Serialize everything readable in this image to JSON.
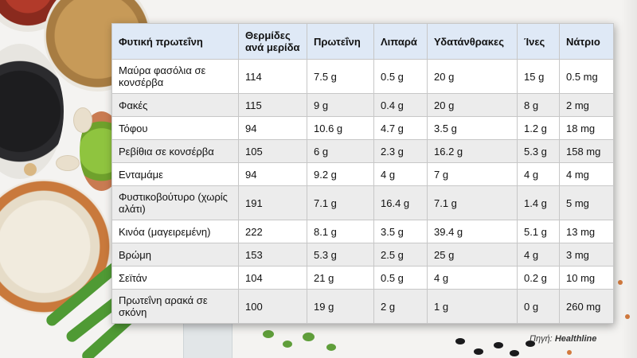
{
  "table": {
    "headers": [
      "Φυτική πρωτεΐνη",
      "Θερμίδες ανά μερίδα",
      "Πρωτεΐνη",
      "Λιπαρά",
      "Υδατάνθρακες",
      "Ίνες",
      "Νάτριο"
    ],
    "rows": [
      [
        "Μαύρα φασόλια σε κονσέρβα",
        "114",
        "7.5 g",
        "0.5 g",
        "20 g",
        "15 g",
        "0.5 mg"
      ],
      [
        "Φακές",
        "115",
        "9 g",
        "0.4 g",
        "20 g",
        "8 g",
        "2 mg"
      ],
      [
        "Τόφου",
        "94",
        "10.6 g",
        "4.7 g",
        "3.5 g",
        "1.2 g",
        "18 mg"
      ],
      [
        "Ρεβίθια σε κονσέρβα",
        "105",
        "6 g",
        "2.3 g",
        "16.2 g",
        "5.3 g",
        "158 mg"
      ],
      [
        "Ενταμάμε",
        "94",
        "9.2 g",
        "4 g",
        "7 g",
        "4 g",
        "4 mg"
      ],
      [
        "Φυστικοβούτυρο (χωρίς αλάτι)",
        "191",
        "7.1 g",
        "16.4 g",
        "7.1 g",
        "1.4 g",
        "5 mg"
      ],
      [
        "Κινόα (μαγειρεμένη)",
        "222",
        "8.1 g",
        "3.5 g",
        "39.4 g",
        "5.1 g",
        "13 mg"
      ],
      [
        "Βρώμη",
        "153",
        "5.3 g",
        "2.5 g",
        "25 g",
        "4 g",
        "3 mg"
      ],
      [
        "Σεϊτάν",
        "104",
        "21 g",
        "0.5 g",
        "4 g",
        "0.2 g",
        "10 mg"
      ],
      [
        "Πρωτεΐνη αρακά σε σκόνη",
        "100",
        "19 g",
        "2 g",
        "1 g",
        "0 g",
        "260 mg"
      ]
    ]
  },
  "source": {
    "label": "Πηγή:",
    "name": "Healthline"
  }
}
